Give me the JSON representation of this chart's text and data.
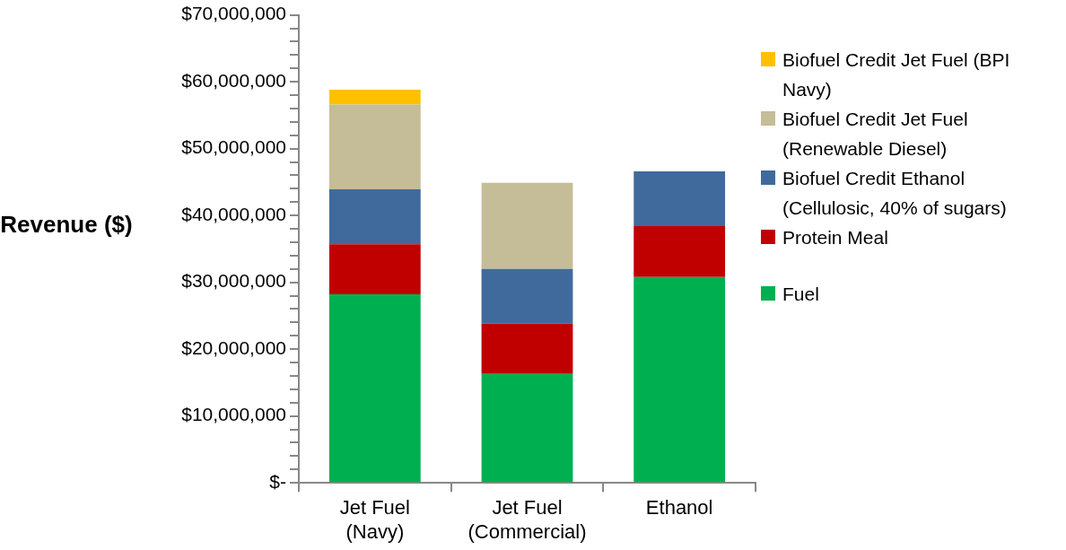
{
  "chart_data": {
    "type": "bar",
    "stacked": true,
    "ylabel": "Revenue ($)",
    "categories": [
      "Jet Fuel (Navy)",
      "Jet Fuel (Commercial)",
      "Ethanol"
    ],
    "series": [
      {
        "name": "Fuel",
        "color": "#00b050",
        "values": [
          28200000.0,
          16300000.0,
          30800000.0
        ]
      },
      {
        "name": "Protein Meal",
        "color": "#c00000",
        "values": [
          7500000.0,
          7500000.0,
          7600000.0
        ]
      },
      {
        "name": "Biofuel Credit Ethanol (Cellulosic, 40% of sugars)",
        "color": "#416a9c",
        "values": [
          8200000.0,
          8200000.0,
          8200000.0
        ]
      },
      {
        "name": "Biofuel Credit Jet Fuel (Renewable Diesel)",
        "color": "#c4bd97",
        "values": [
          12700000.0,
          12900000.0,
          null
        ]
      },
      {
        "name": "Biofuel Credit Jet Fuel (BPI Navy)",
        "color": "#ffc000",
        "values": [
          2200000.0,
          null,
          null
        ]
      }
    ],
    "ylim": [
      0,
      70000000
    ],
    "yticks": [
      {
        "value": 0,
        "label": "$-"
      },
      {
        "value": 2000000,
        "label": null
      },
      {
        "value": 4000000,
        "label": null
      },
      {
        "value": 6000000,
        "label": null
      },
      {
        "value": 8000000,
        "label": null
      },
      {
        "value": 10000000,
        "label": "$10,000,000"
      },
      {
        "value": 12000000,
        "label": null
      },
      {
        "value": 14000000,
        "label": null
      },
      {
        "value": 16000000,
        "label": null
      },
      {
        "value": 18000000,
        "label": null
      },
      {
        "value": 20000000,
        "label": "$20,000,000"
      },
      {
        "value": 22000000,
        "label": null
      },
      {
        "value": 24000000,
        "label": null
      },
      {
        "value": 26000000,
        "label": null
      },
      {
        "value": 28000000,
        "label": null
      },
      {
        "value": 30000000,
        "label": "$30,000,000"
      },
      {
        "value": 32000000,
        "label": null
      },
      {
        "value": 34000000,
        "label": null
      },
      {
        "value": 36000000,
        "label": null
      },
      {
        "value": 38000000,
        "label": null
      },
      {
        "value": 40000000,
        "label": "$40,000,000"
      },
      {
        "value": 42000000,
        "label": null
      },
      {
        "value": 44000000,
        "label": null
      },
      {
        "value": 46000000,
        "label": null
      },
      {
        "value": 48000000,
        "label": null
      },
      {
        "value": 50000000,
        "label": "$50,000,000"
      },
      {
        "value": 52000000,
        "label": null
      },
      {
        "value": 54000000,
        "label": null
      },
      {
        "value": 56000000,
        "label": null
      },
      {
        "value": 58000000,
        "label": null
      },
      {
        "value": 60000000,
        "label": "$60,000,000"
      },
      {
        "value": 62000000,
        "label": null
      },
      {
        "value": 64000000,
        "label": null
      },
      {
        "value": 66000000,
        "label": null
      },
      {
        "value": 68000000,
        "label": null
      },
      {
        "value": 70000000,
        "label": "$70,000,000"
      }
    ],
    "grid": false,
    "legend": "right"
  }
}
